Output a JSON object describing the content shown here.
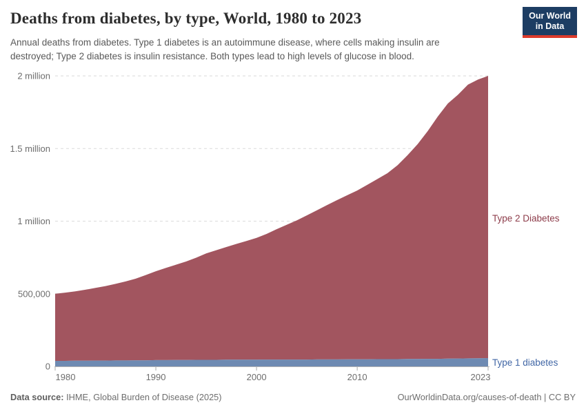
{
  "header": {
    "title": "Deaths from diabetes, by type, World, 1980 to 2023",
    "subtitle_line1": "Annual deaths from diabetes. Type 1 diabetes is an autoimmune disease, where cells making insulin are",
    "subtitle_line2": "destroyed; Type 2 diabetes is insulin resistance. Both types lead to high levels of glucose in blood.",
    "logo": {
      "line1": "Our World",
      "line2": "in Data",
      "bg_color": "#1d3d63",
      "bar_color": "#dc3a2b"
    }
  },
  "footer": {
    "source_label": "Data source:",
    "source_value": " IHME, Global Burden of Disease (2025)",
    "attribution": "OurWorldinData.org/causes-of-death | CC BY"
  },
  "chart_data": {
    "type": "area",
    "stacked": true,
    "title": "Deaths from diabetes, by type, World, 1980 to 2023",
    "xlabel": "",
    "ylabel": "",
    "grid": true,
    "legend_position": "right-edge-labels",
    "xlim": [
      1980,
      2023
    ],
    "ylim": [
      0,
      2000000
    ],
    "x": [
      1980,
      1981,
      1982,
      1983,
      1984,
      1985,
      1986,
      1987,
      1988,
      1989,
      1990,
      1991,
      1992,
      1993,
      1994,
      1995,
      1996,
      1997,
      1998,
      1999,
      2000,
      2001,
      2002,
      2003,
      2004,
      2005,
      2006,
      2007,
      2008,
      2009,
      2010,
      2011,
      2012,
      2013,
      2014,
      2015,
      2016,
      2017,
      2018,
      2019,
      2020,
      2021,
      2022,
      2023
    ],
    "xticks": {
      "values": [
        1980,
        1990,
        2000,
        2010,
        2023
      ],
      "labels": [
        "1980",
        "1990",
        "2000",
        "2010",
        "2023"
      ]
    },
    "yticks": [
      {
        "value": 0,
        "label": "0"
      },
      {
        "value": 500000,
        "label": "500,000"
      },
      {
        "value": 1000000,
        "label": "1 million"
      },
      {
        "value": 1500000,
        "label": "1.5 million"
      },
      {
        "value": 2000000,
        "label": "2 million"
      }
    ],
    "series": [
      {
        "name": "Type 1 diabetes",
        "color": "#6e8ab2",
        "label_color": "#4066a5",
        "values": [
          38000,
          38000,
          39000,
          39000,
          40000,
          40000,
          41000,
          41000,
          42000,
          42000,
          43000,
          43000,
          44000,
          44000,
          45000,
          45000,
          45000,
          46000,
          46000,
          46000,
          46000,
          47000,
          47000,
          47000,
          47000,
          47000,
          48000,
          48000,
          48000,
          49000,
          49000,
          49000,
          50000,
          50000,
          50000,
          51000,
          51000,
          52000,
          52000,
          53000,
          54000,
          55000,
          56000,
          57000
        ]
      },
      {
        "name": "Type 2 Diabetes",
        "color": "#a2555f",
        "label_color": "#8d3c4a",
        "values": [
          462000,
          470000,
          478000,
          489000,
          500000,
          513000,
          527000,
          544000,
          562000,
          587000,
          612000,
          635000,
          656000,
          678000,
          703000,
          733000,
          755000,
          776000,
          797000,
          817000,
          839000,
          865000,
          898000,
          928000,
          958000,
          993000,
          1027000,
          1062000,
          1097000,
          1129000,
          1162000,
          1201000,
          1240000,
          1280000,
          1335000,
          1403000,
          1479000,
          1568000,
          1668000,
          1757000,
          1816000,
          1885000,
          1919000,
          1943000
        ]
      }
    ]
  }
}
